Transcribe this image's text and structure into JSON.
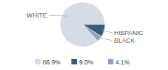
{
  "chart_data": {
    "type": "pie",
    "categories": [
      "WHITE",
      "HISPANIC",
      "BLACK"
    ],
    "values": [
      86.9,
      9.0,
      4.1
    ],
    "value_labels": [
      "86.9%",
      "9.0%",
      "4.1%"
    ],
    "colors": [
      "#d5dce5",
      "#3b5b7b",
      "#8fa4b9"
    ],
    "legend": "bottom"
  }
}
